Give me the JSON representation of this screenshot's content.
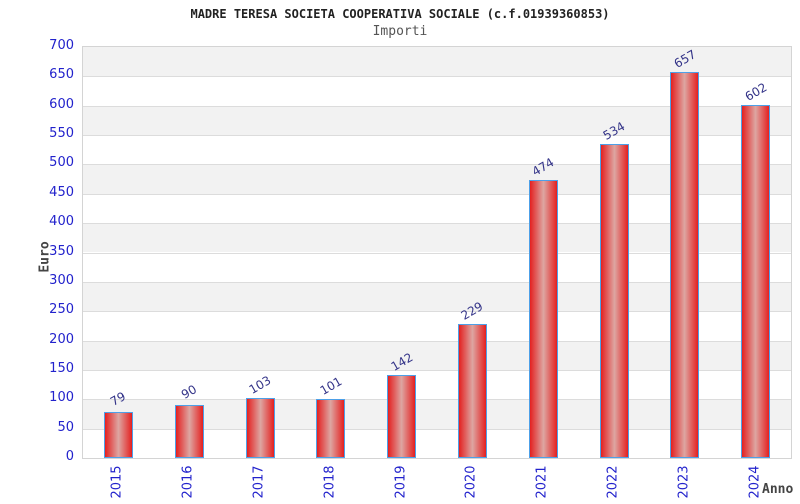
{
  "chart_data": {
    "type": "bar",
    "title": "MADRE TERESA SOCIETA COOPERATIVA SOCIALE (c.f.01939360853)",
    "subtitle": "Importi",
    "xlabel": "Anno",
    "ylabel": "Euro",
    "categories": [
      "2015",
      "2016",
      "2017",
      "2018",
      "2019",
      "2020",
      "2021",
      "2022",
      "2023",
      "2024"
    ],
    "values": [
      79,
      90,
      103,
      101,
      142,
      229,
      474,
      534,
      657,
      602
    ],
    "ylim": [
      0,
      700
    ],
    "ytick_step": 50,
    "grid": "horizontal gridlines every 50 with alternating gray/white bands",
    "legend": "none",
    "colors": {
      "bar_gradient_edge": "#e42020",
      "bar_gradient_center": "#dda6a2",
      "bar_border": "#4da0e8",
      "tick_label": "#2222cc",
      "value_label": "#333388",
      "band_fill": "#f2f2f2",
      "gridline": "#dcdcdc",
      "axis_title": "#444444",
      "title": "#222222",
      "subtitle": "#555555"
    }
  }
}
